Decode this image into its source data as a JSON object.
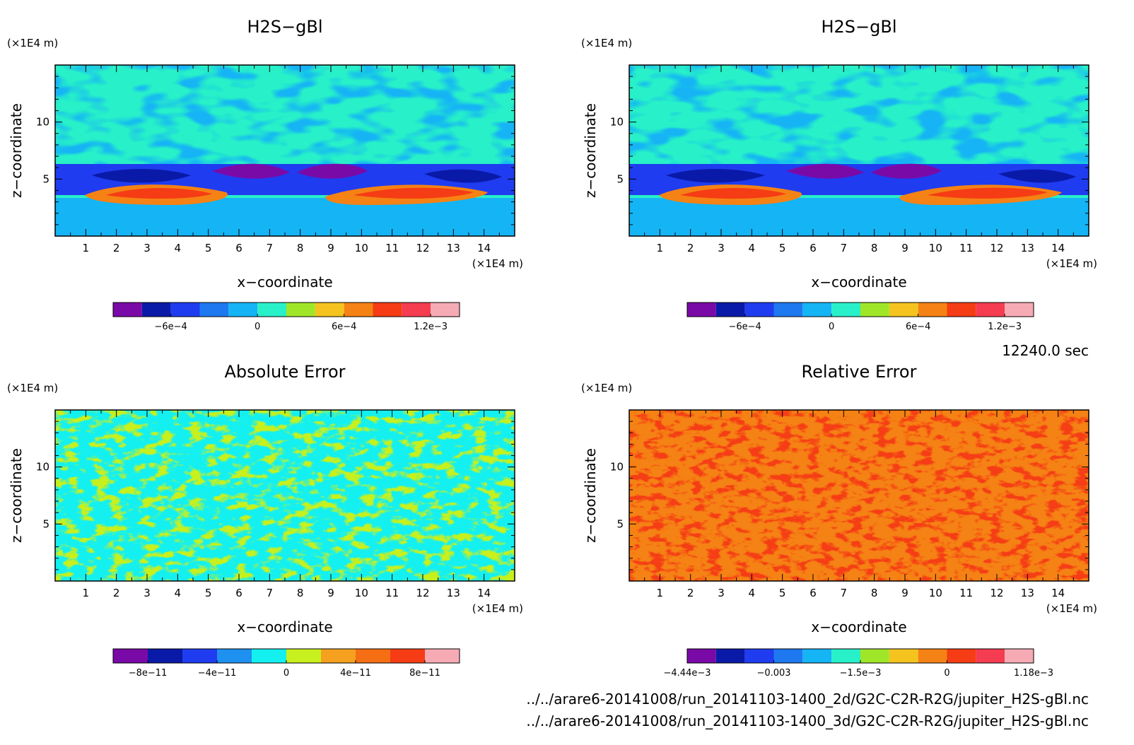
{
  "figure": {
    "time_label": "12240.0 sec",
    "files": [
      "../../arare6-20141008/run_20141103-1400_2d/G2C-C2R-R2G/jupiter_H2S-gBl.nc",
      "../../arare6-20141008/run_20141103-1400_3d/G2C-C2R-R2G/jupiter_H2S-gBl.nc"
    ]
  },
  "chart_data": [
    {
      "type": "heatmap",
      "title": "H2S−gBl",
      "xlabel": "x−coordinate",
      "ylabel": "z−coordinate",
      "x_unit": "(×1E4 m)",
      "y_unit": "(×1E4 m)",
      "xlim": [
        0,
        15
      ],
      "ylim": [
        0,
        15
      ],
      "xticks": [
        1,
        2,
        3,
        4,
        5,
        6,
        7,
        8,
        9,
        10,
        11,
        12,
        13,
        14
      ],
      "yticks": [
        5,
        10
      ],
      "colorbar": {
        "colors": [
          "#7a0aa8",
          "#0a1aa8",
          "#1f3cf0",
          "#1e78f0",
          "#14b4f5",
          "#28f0c8",
          "#a0e628",
          "#f5c31e",
          "#f58214",
          "#f53c14",
          "#f53c50",
          "#f5aab4"
        ],
        "ticks": [
          "−6e−4",
          "0",
          "6e−4",
          "1.2e−3"
        ],
        "tick_positions": [
          2,
          5,
          8,
          11
        ]
      }
    },
    {
      "type": "heatmap",
      "title": "H2S−gBl",
      "xlabel": "x−coordinate",
      "ylabel": "z−coordinate",
      "x_unit": "(×1E4 m)",
      "y_unit": "(×1E4 m)",
      "xlim": [
        0,
        15
      ],
      "ylim": [
        0,
        15
      ],
      "xticks": [
        1,
        2,
        3,
        4,
        5,
        6,
        7,
        8,
        9,
        10,
        11,
        12,
        13,
        14
      ],
      "yticks": [
        5,
        10
      ],
      "colorbar": {
        "colors": [
          "#7a0aa8",
          "#0a1aa8",
          "#1f3cf0",
          "#1e78f0",
          "#14b4f5",
          "#28f0c8",
          "#a0e628",
          "#f5c31e",
          "#f58214",
          "#f53c14",
          "#f53c50",
          "#f5aab4"
        ],
        "ticks": [
          "−6e−4",
          "0",
          "6e−4",
          "1.2e−3"
        ],
        "tick_positions": [
          2,
          5,
          8,
          11
        ]
      }
    },
    {
      "type": "heatmap",
      "title": "Absolute Error",
      "xlabel": "x−coordinate",
      "ylabel": "z−coordinate",
      "x_unit": "(×1E4 m)",
      "y_unit": "(×1E4 m)",
      "xlim": [
        0,
        15
      ],
      "ylim": [
        0,
        15
      ],
      "xticks": [
        1,
        2,
        3,
        4,
        5,
        6,
        7,
        8,
        9,
        10,
        11,
        12,
        13,
        14
      ],
      "yticks": [
        5,
        10
      ],
      "colorbar": {
        "colors": [
          "#7a0aa8",
          "#0a1aa8",
          "#1f3cf0",
          "#1e90f0",
          "#14f0f0",
          "#c8f01e",
          "#f5a01e",
          "#f56e14",
          "#f53c14",
          "#f5aab4"
        ],
        "ticks": [
          "−8e−11",
          "−4e−11",
          "0",
          "4e−11",
          "8e−11"
        ],
        "tick_positions": [
          1,
          3,
          5,
          7,
          9
        ]
      }
    },
    {
      "type": "heatmap",
      "title": "Relative Error",
      "xlabel": "x−coordinate",
      "ylabel": "z−coordinate",
      "x_unit": "(×1E4 m)",
      "y_unit": "(×1E4 m)",
      "xlim": [
        0,
        15
      ],
      "ylim": [
        0,
        15
      ],
      "xticks": [
        1,
        2,
        3,
        4,
        5,
        6,
        7,
        8,
        9,
        10,
        11,
        12,
        13,
        14
      ],
      "yticks": [
        5,
        10
      ],
      "colorbar": {
        "colors": [
          "#7a0aa8",
          "#0a1aa8",
          "#1f3cf0",
          "#1e78f0",
          "#14b4f5",
          "#28f0c8",
          "#a0e628",
          "#f5c31e",
          "#f58214",
          "#f53c14",
          "#f53c50",
          "#f5aab4"
        ],
        "ticks": [
          "−4.44e−3",
          "−0.003",
          "−1.5e−3",
          "0",
          "1.18e−3"
        ],
        "tick_positions": [
          0,
          3,
          6,
          9,
          12
        ]
      }
    }
  ]
}
